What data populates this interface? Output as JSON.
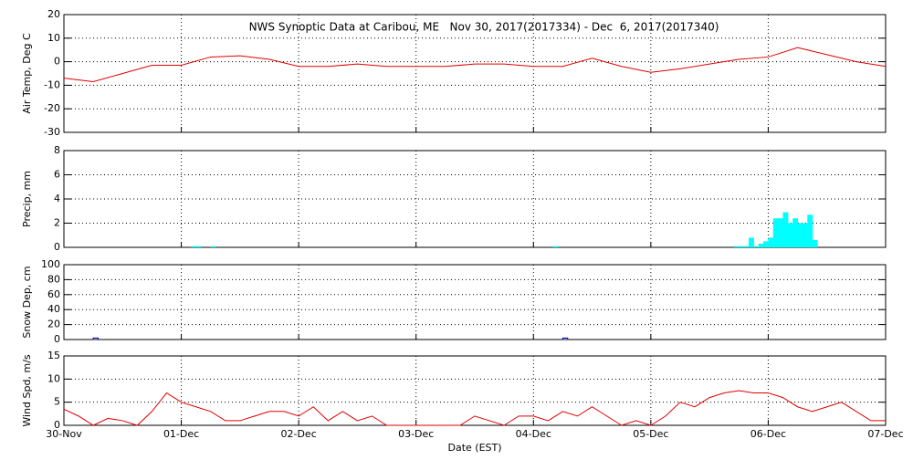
{
  "chart_data": [
    {
      "type": "line",
      "title": "NWS Synoptic Data at Caribou, ME   Nov 30, 2017(2017334) - Dec  6, 2017(2017340)",
      "ylabel": "Air Temp, Deg C",
      "x": [
        0,
        6,
        12,
        18,
        24,
        30,
        36,
        42,
        48,
        54,
        60,
        66,
        72,
        78,
        84,
        90,
        96,
        102,
        108,
        114,
        120,
        126,
        132,
        138,
        144,
        150,
        156,
        162,
        168
      ],
      "series": [
        {
          "name": "Air Temp",
          "color": "#e00000",
          "values": [
            -7,
            -8.5,
            -5,
            -1.5,
            -1.5,
            2,
            2.5,
            1,
            -2,
            -2,
            -1,
            -2,
            -2,
            -2,
            -1,
            -1,
            -2,
            -2,
            1.5,
            -2,
            -4.5,
            -3,
            -1,
            1,
            2,
            6,
            3,
            0,
            -2
          ]
        }
      ],
      "xlim": [
        0,
        168
      ],
      "xticks": [
        0,
        24,
        48,
        72,
        96,
        120,
        144,
        168
      ],
      "ylim": [
        -30,
        20
      ],
      "yticks": [
        -30,
        -20,
        -10,
        0,
        10,
        20
      ],
      "grid": true
    },
    {
      "type": "bar",
      "ylabel": "Precip, mm",
      "x": [
        26,
        27,
        30,
        100,
        137,
        138,
        139,
        140,
        141,
        142,
        143,
        144,
        145,
        146,
        147,
        148,
        149,
        150,
        151,
        152,
        153
      ],
      "series": [
        {
          "name": "Precip",
          "color": "#00ffff",
          "values": [
            0.1,
            0.1,
            0.1,
            0.1,
            0.1,
            0.1,
            0.1,
            0.8,
            0.1,
            0.3,
            0.5,
            0.8,
            2.4,
            2.4,
            2.9,
            2,
            2.4,
            2,
            2,
            2.7,
            0.6
          ]
        }
      ],
      "xlim": [
        0,
        168
      ],
      "xticks": [
        0,
        24,
        48,
        72,
        96,
        120,
        144,
        168
      ],
      "ylim": [
        0,
        8
      ],
      "yticks": [
        0,
        2,
        4,
        6,
        8
      ],
      "grid": true
    },
    {
      "type": "bar",
      "ylabel": "Snow Dep, cm",
      "x": [
        6,
        102
      ],
      "series": [
        {
          "name": "Snow Depth",
          "color": "#000080",
          "values": [
            2,
            2
          ]
        }
      ],
      "xlim": [
        0,
        168
      ],
      "xticks": [
        0,
        24,
        48,
        72,
        96,
        120,
        144,
        168
      ],
      "ylim": [
        0,
        100
      ],
      "yticks": [
        0,
        20,
        40,
        60,
        80,
        100
      ],
      "grid": true
    },
    {
      "type": "line",
      "ylabel": "Wind Spd, m/s",
      "xlabel": "Date (EST)",
      "x": [
        0,
        3,
        6,
        9,
        12,
        15,
        18,
        21,
        24,
        27,
        30,
        33,
        36,
        39,
        42,
        45,
        48,
        51,
        54,
        57,
        60,
        63,
        66,
        69,
        72,
        75,
        78,
        81,
        84,
        87,
        90,
        93,
        96,
        99,
        102,
        105,
        108,
        111,
        114,
        117,
        120,
        123,
        126,
        129,
        132,
        135,
        138,
        141,
        144,
        147,
        150,
        153,
        156,
        159,
        162,
        165,
        168
      ],
      "series": [
        {
          "name": "Wind Speed",
          "color": "#e00000",
          "values": [
            3.5,
            2,
            0,
            1.5,
            1,
            0,
            3,
            7,
            5,
            4,
            3,
            1,
            1,
            2,
            3,
            3,
            2,
            4,
            1,
            3,
            1,
            2,
            0,
            0,
            0,
            0,
            0,
            0,
            2,
            1,
            0,
            2,
            2,
            1,
            3,
            2,
            4,
            2,
            0,
            1,
            0,
            2,
            5,
            4,
            6,
            7,
            7.5,
            7,
            7,
            6,
            4,
            3,
            4,
            5,
            3,
            1,
            1
          ]
        }
      ],
      "xlim": [
        0,
        168
      ],
      "xticks": [
        {
          "value": 0,
          "label": "30-Nov"
        },
        {
          "value": 24,
          "label": "01-Dec"
        },
        {
          "value": 48,
          "label": "02-Dec"
        },
        {
          "value": 72,
          "label": "03-Dec"
        },
        {
          "value": 96,
          "label": "04-Dec"
        },
        {
          "value": 120,
          "label": "05-Dec"
        },
        {
          "value": 144,
          "label": "06-Dec"
        },
        {
          "value": 168,
          "label": "07-Dec"
        }
      ],
      "ylim": [
        0,
        15
      ],
      "yticks": [
        0,
        5,
        10,
        15
      ],
      "grid": true
    }
  ]
}
